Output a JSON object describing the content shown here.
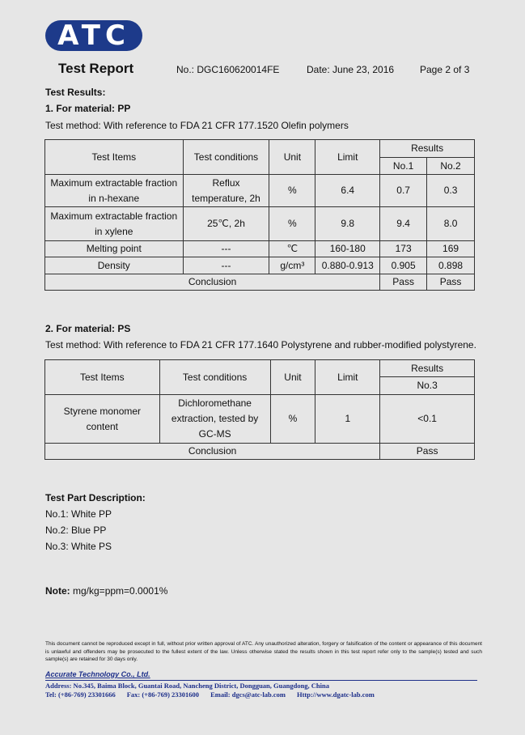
{
  "watermark": "ATC",
  "header": {
    "logo": "ATC",
    "title": "Test Report",
    "report_no": "No.: DGC160620014FE",
    "date": "Date: June 23, 2016",
    "page": "Page 2 of 3"
  },
  "results_heading": "Test Results:",
  "section1": {
    "heading": "1.  For material: PP",
    "method": "Test method: With reference to FDA 21 CFR 177.1520 Olefin polymers",
    "headers": {
      "items": "Test Items",
      "conditions": "Test conditions",
      "unit": "Unit",
      "limit": "Limit",
      "results": "Results",
      "no1": "No.1",
      "no2": "No.2"
    },
    "rows": [
      {
        "item": "Maximum extractable fraction in n-hexane",
        "conditions": "Reflux temperature, 2h",
        "unit": "%",
        "limit": "6.4",
        "no1": "0.7",
        "no2": "0.3"
      },
      {
        "item": "Maximum extractable fraction in xylene",
        "conditions": "25℃, 2h",
        "unit": "%",
        "limit": "9.8",
        "no1": "9.4",
        "no2": "8.0"
      },
      {
        "item": "Melting point",
        "conditions": "---",
        "unit": "℃",
        "limit": "160-180",
        "no1": "173",
        "no2": "169"
      },
      {
        "item": "Density",
        "conditions": "---",
        "unit": "g/cm³",
        "limit": "0.880-0.913",
        "no1": "0.905",
        "no2": "0.898"
      }
    ],
    "conclusion": {
      "label": "Conclusion",
      "no1": "Pass",
      "no2": "Pass"
    }
  },
  "section2": {
    "heading": "2.  For material: PS",
    "method": "Test method: With reference to FDA 21 CFR 177.1640 Polystyrene and rubber-modified polystyrene.",
    "headers": {
      "items": "Test Items",
      "conditions": "Test conditions",
      "unit": "Unit",
      "limit": "Limit",
      "results": "Results",
      "no3": "No.3"
    },
    "row": {
      "item": "Styrene monomer content",
      "conditions": "Dichloromethane extraction, tested by GC-MS",
      "unit": "%",
      "limit": "1",
      "no3": "<0.1"
    },
    "conclusion": {
      "label": "Conclusion",
      "no3": "Pass"
    }
  },
  "parts": {
    "heading": "Test Part Description:",
    "items": [
      "No.1: White PP",
      "No.2: Blue PP",
      "No.3: White PS"
    ]
  },
  "note": {
    "label": "Note:",
    "text": " mg/kg=ppm=0.0001%"
  },
  "disclaimer": "This document cannot be reproduced except in full, without prior written approval of ATC. Any unauthorized alteration, forgery or falsification of the content or appearance of   this document is unlawful and offenders may be prosecuted to the fullest extent of the law. Unless otherwise stated the results shown in this test report refer only to the sample(s) tested and such sample(s) are retained for 30 days only.",
  "footer": {
    "company": "Accurate Technology Co., Ltd.",
    "address": "Address: No.345, Baima Block, Guantai Road, Nancheng District, Dongguan, Guangdong, China",
    "tel": "Tel: (+86-769) 23301666",
    "fax": "Fax: (+86-769) 23301600",
    "email": "Email: dgcs@atc-lab.com",
    "web": "Http://www.dgatc-lab.com"
  }
}
